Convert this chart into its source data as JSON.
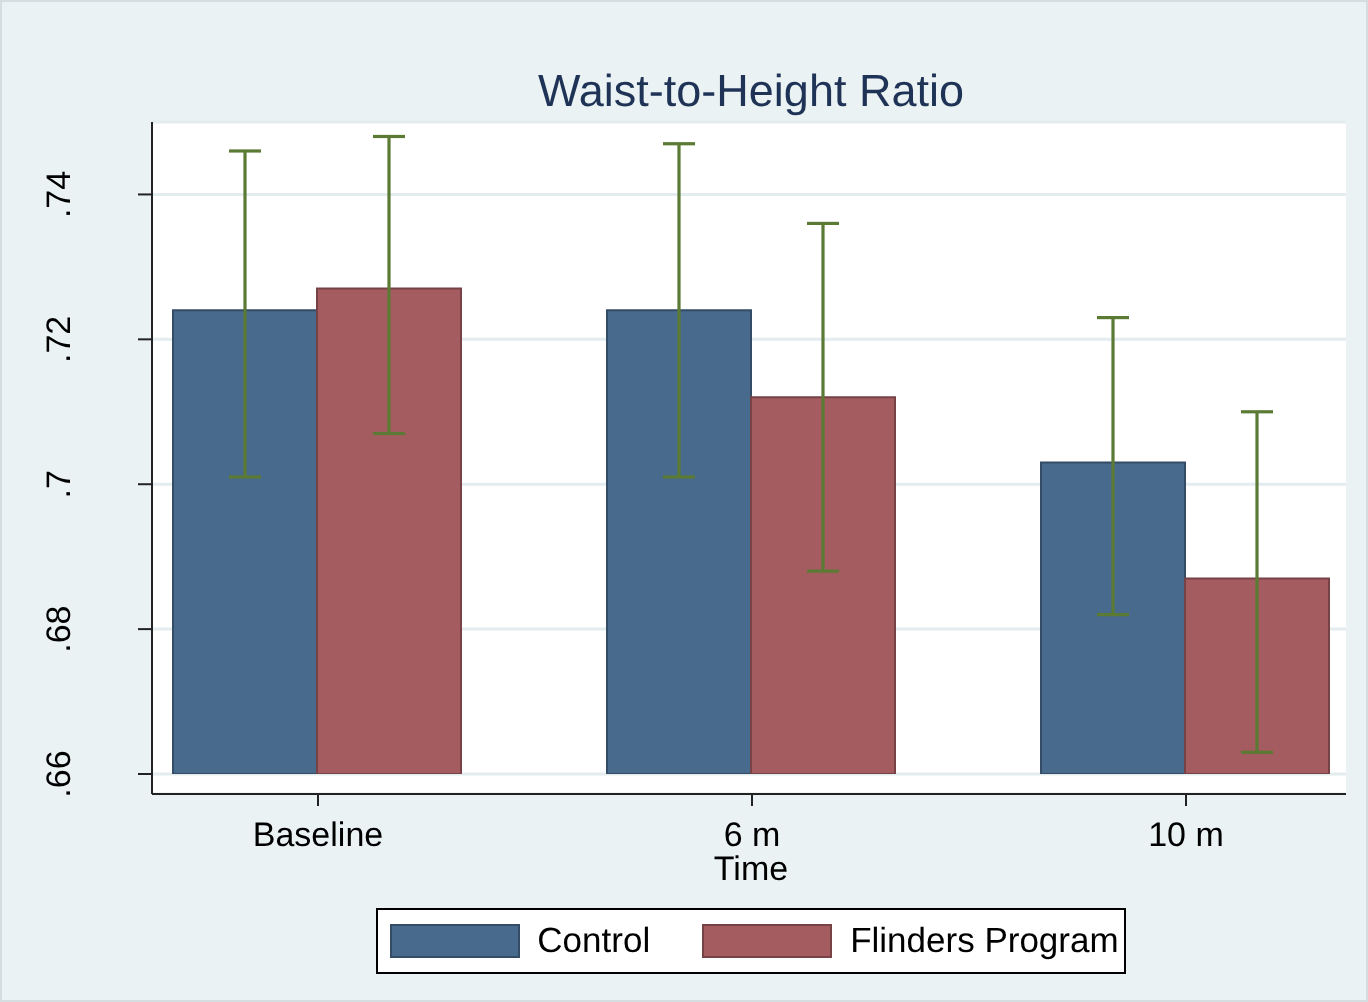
{
  "chart_data": {
    "type": "bar",
    "title": "Waist-to-Height Ratio",
    "xlabel": "Time",
    "categories": [
      "Baseline",
      "6 m",
      "10 m"
    ],
    "series": [
      {
        "name": "Control",
        "color": "#486a8c",
        "values": [
          0.724,
          0.724,
          0.703
        ],
        "errors": [
          [
            0.701,
            0.746
          ],
          [
            0.701,
            0.747
          ],
          [
            0.682,
            0.723
          ]
        ]
      },
      {
        "name": "Flinders Program",
        "color": "#a45c61",
        "values": [
          0.727,
          0.712,
          0.687
        ],
        "errors": [
          [
            0.707,
            0.748
          ],
          [
            0.688,
            0.736
          ],
          [
            0.663,
            0.71
          ]
        ]
      }
    ],
    "ylim": [
      0.66,
      0.75
    ],
    "yticks": [
      {
        "value": 0.66,
        "label": ".66"
      },
      {
        "value": 0.68,
        "label": ".68"
      },
      {
        "value": 0.7,
        "label": ".7"
      },
      {
        "value": 0.72,
        "label": ".72"
      },
      {
        "value": 0.74,
        "label": ".74"
      }
    ],
    "grid": "y",
    "legend": "bottom"
  }
}
